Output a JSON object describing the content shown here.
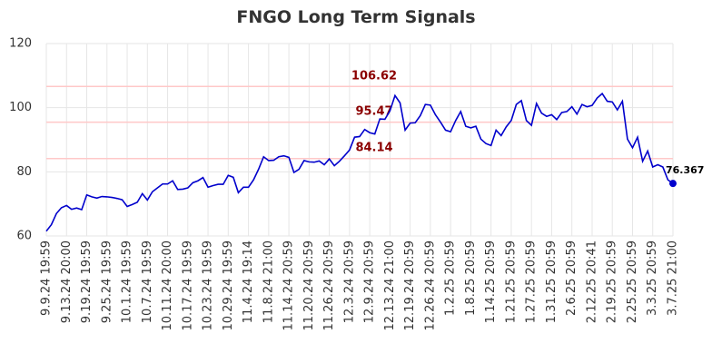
{
  "chart_data": {
    "type": "line",
    "title": "FNGO Long Term Signals",
    "categories": [
      "9.9.24 19:59",
      null,
      null,
      null,
      "9.13.24 20:00",
      null,
      null,
      null,
      "9.19.24 19:59",
      null,
      null,
      null,
      "9.25.24 19:59",
      null,
      null,
      null,
      "10.1.24 19:59",
      null,
      null,
      null,
      "10.7.24 19:59",
      null,
      null,
      null,
      "10.11.24 20:00",
      null,
      null,
      null,
      "10.17.24 19:59",
      null,
      null,
      null,
      "10.23.24 19:59",
      null,
      null,
      null,
      "10.29.24 19:59",
      null,
      null,
      null,
      "11.4.24 19:14",
      null,
      null,
      null,
      "11.8.24 21:00",
      null,
      null,
      null,
      "11.14.24 20:59",
      null,
      null,
      null,
      "11.20.24 20:59",
      null,
      null,
      null,
      "11.26.24 20:59",
      null,
      null,
      null,
      "12.3.24 20:59",
      null,
      null,
      null,
      "12.9.24 20:59",
      null,
      null,
      null,
      "12.13.24 21:00",
      null,
      null,
      null,
      "12.19.24 20:59",
      null,
      null,
      null,
      "12.26.24 20:59",
      null,
      null,
      null,
      "1.2.25 20:59",
      null,
      null,
      null,
      "1.8.25 20:59",
      null,
      null,
      null,
      "1.14.25 20:59",
      null,
      null,
      null,
      "1.21.25 20:59",
      null,
      null,
      null,
      "1.27.25 20:59",
      null,
      null,
      null,
      "1.31.25 20:59",
      null,
      null,
      null,
      "2.6.25 20:59",
      null,
      null,
      null,
      "2.12.25 20:41",
      null,
      null,
      null,
      "2.19.25 20:59",
      null,
      null,
      null,
      "2.25.25 20:59",
      null,
      null,
      null,
      "3.3.25 20:59",
      null,
      null,
      null,
      "3.7.25 21:00"
    ],
    "values": [
      61.5,
      63.5,
      67,
      68.8,
      69.5,
      68.3,
      68.7,
      68.2,
      72.8,
      72.2,
      71.8,
      72.3,
      72.2,
      72,
      71.7,
      71.3,
      69.2,
      69.8,
      70.5,
      73.2,
      71.2,
      73.8,
      75,
      76.2,
      76.2,
      77.2,
      74.5,
      74.6,
      75,
      76.6,
      77.2,
      78.2,
      75.2,
      75.7,
      76.1,
      76.1,
      78.9,
      78.3,
      73.5,
      75.2,
      75.2,
      77.5,
      80.8,
      84.7,
      83.5,
      83.6,
      84.7,
      85,
      84.5,
      79.8,
      80.8,
      83.5,
      83.1,
      83,
      83.4,
      82.2,
      84,
      81.9,
      83.3,
      85,
      86.8,
      90.8,
      91,
      93.2,
      92.2,
      91.8,
      96.5,
      96.4,
      99,
      103.8,
      101.5,
      93,
      95.2,
      95.3,
      97.5,
      101,
      100.8,
      97.8,
      95.5,
      93,
      92.5,
      96,
      98.8,
      94.2,
      93.7,
      94.2,
      90.2,
      88.8,
      88.2,
      93,
      91.3,
      94,
      96,
      101,
      102.2,
      96,
      94.5,
      101.3,
      98.3,
      97.3,
      97.8,
      96.3,
      98.5,
      98.8,
      100.3,
      98,
      101,
      100.3,
      100.7,
      103,
      104.4,
      102,
      101.8,
      99.3,
      102,
      90.2,
      87.5,
      90.8,
      83.3,
      86.5,
      81.5,
      82.2,
      81.5,
      77.5,
      76.367
    ],
    "color": "#0000cc",
    "signals": [
      106.62,
      95.47,
      84.14
    ],
    "signal_color": "#ffc8c8",
    "signal_label_color": "#8b0000",
    "ylim": [
      60,
      120
    ],
    "yticks": [
      60,
      80,
      100,
      120
    ],
    "grid": true
  }
}
